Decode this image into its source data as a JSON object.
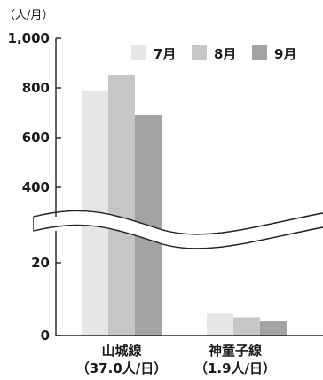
{
  "chart_data": {
    "type": "bar",
    "unit_label": "（人/月）",
    "y_ticks": [
      "1,000",
      "800",
      "600",
      "400",
      "20",
      "0"
    ],
    "axis_break": true,
    "legend_position": "top-right",
    "categories": [
      {
        "name": "山城線",
        "sub": "（37.0人/日）"
      },
      {
        "name": "神童子線",
        "sub": "（1.9人/日）"
      }
    ],
    "series": [
      {
        "name": "7月",
        "color": "#e6e6e6",
        "values": [
          790,
          6
        ]
      },
      {
        "name": "8月",
        "color": "#c6c6c6",
        "values": [
          850,
          5
        ]
      },
      {
        "name": "9月",
        "color": "#a3a3a3",
        "values": [
          690,
          4
        ]
      }
    ]
  }
}
